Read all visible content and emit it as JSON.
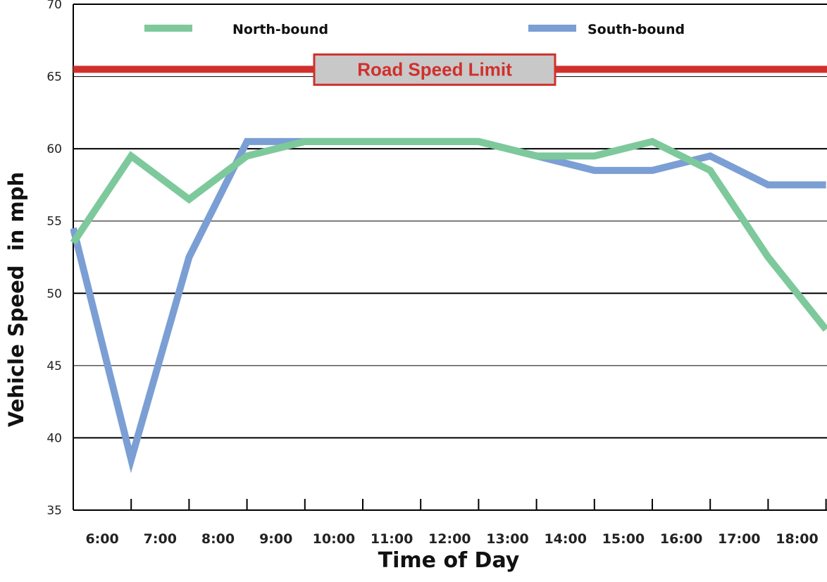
{
  "chart_data": {
    "type": "line",
    "xlabel": "Time of Day",
    "ylabel": "Vehicle Speed  in mph",
    "categories": [
      "6:00",
      "7:00",
      "8:00",
      "9:00",
      "10:00",
      "11:00",
      "12:00",
      "13:00",
      "14:00",
      "15:00",
      "16:00",
      "17:00",
      "18:00"
    ],
    "ylim": [
      35,
      70
    ],
    "yticks": [
      35,
      40,
      45,
      50,
      55,
      60,
      65,
      70
    ],
    "grid": "horizontal",
    "legend_position": "top",
    "series": [
      {
        "name": "North-bound",
        "color": "#7dc99b",
        "points": [
          {
            "x": "5:30",
            "y": 53.5
          },
          {
            "x": "6:30",
            "y": 59.5
          },
          {
            "x": "7:30",
            "y": 56.5
          },
          {
            "x": "8:30",
            "y": 59.5
          },
          {
            "x": "9:30",
            "y": 60.5
          },
          {
            "x": "10:30",
            "y": 60.5
          },
          {
            "x": "11:30",
            "y": 60.5
          },
          {
            "x": "12:30",
            "y": 60.5
          },
          {
            "x": "13:30",
            "y": 59.5
          },
          {
            "x": "14:30",
            "y": 59.5
          },
          {
            "x": "15:30",
            "y": 60.5
          },
          {
            "x": "16:30",
            "y": 58.5
          },
          {
            "x": "17:30",
            "y": 52.5
          },
          {
            "x": "18:30",
            "y": 47.5
          }
        ]
      },
      {
        "name": "South-bound",
        "color": "#7b9fd4",
        "points": [
          {
            "x": "5:30",
            "y": 54.5
          },
          {
            "x": "6:30",
            "y": 38.5
          },
          {
            "x": "7:30",
            "y": 52.5
          },
          {
            "x": "8:30",
            "y": 60.5
          },
          {
            "x": "9:30",
            "y": 60.5
          },
          {
            "x": "10:30",
            "y": 60.5
          },
          {
            "x": "11:30",
            "y": 60.5
          },
          {
            "x": "12:30",
            "y": 60.5
          },
          {
            "x": "13:30",
            "y": 59.5
          },
          {
            "x": "14:30",
            "y": 58.5
          },
          {
            "x": "15:30",
            "y": 58.5
          },
          {
            "x": "16:30",
            "y": 59.5
          },
          {
            "x": "17:30",
            "y": 57.5
          },
          {
            "x": "18:30",
            "y": 57.5
          }
        ]
      }
    ],
    "reference_line": {
      "label": "Road Speed Limit",
      "y": 65.5,
      "color": "#d0302c",
      "label_background": "#c8c8c8"
    }
  }
}
